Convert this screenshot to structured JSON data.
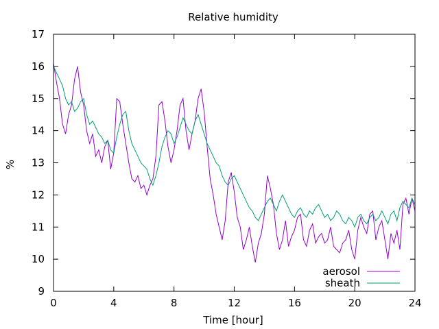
{
  "chart_data": {
    "type": "line",
    "title": "Relative humidity",
    "xlabel": "Time [hour]",
    "ylabel": "%",
    "xlim": [
      0,
      24
    ],
    "ylim": [
      9,
      17
    ],
    "xticks": [
      0,
      4,
      8,
      12,
      16,
      20,
      24
    ],
    "yticks": [
      9,
      10,
      11,
      12,
      13,
      14,
      15,
      16,
      17
    ],
    "grid": false,
    "legend_position": "bottom-right",
    "series": [
      {
        "name": "aerosol",
        "color": "#9400d3",
        "x": [
          0,
          0.2,
          0.4,
          0.6,
          0.8,
          1.0,
          1.2,
          1.4,
          1.6,
          1.8,
          2.0,
          2.2,
          2.4,
          2.6,
          2.8,
          3.0,
          3.2,
          3.4,
          3.6,
          3.8,
          4.0,
          4.2,
          4.4,
          4.6,
          4.8,
          5.0,
          5.2,
          5.4,
          5.6,
          5.8,
          6.0,
          6.2,
          6.4,
          6.6,
          6.8,
          7.0,
          7.2,
          7.4,
          7.6,
          7.8,
          8.0,
          8.2,
          8.4,
          8.6,
          8.8,
          9.0,
          9.2,
          9.4,
          9.6,
          9.8,
          10.0,
          10.2,
          10.4,
          10.6,
          10.8,
          11.0,
          11.2,
          11.4,
          11.6,
          11.8,
          12.0,
          12.2,
          12.4,
          12.6,
          12.8,
          13.0,
          13.2,
          13.4,
          13.6,
          13.8,
          14.0,
          14.2,
          14.4,
          14.6,
          14.8,
          15.0,
          15.2,
          15.4,
          15.6,
          15.8,
          16.0,
          16.2,
          16.4,
          16.6,
          16.8,
          17.0,
          17.2,
          17.4,
          17.6,
          17.8,
          18.0,
          18.2,
          18.4,
          18.6,
          18.8,
          19.0,
          19.2,
          19.4,
          19.6,
          19.8,
          20.0,
          20.2,
          20.4,
          20.6,
          20.8,
          21.0,
          21.2,
          21.4,
          21.6,
          21.8,
          22.0,
          22.2,
          22.4,
          22.6,
          22.8,
          23.0,
          23.2,
          23.4,
          23.6,
          23.8,
          24.0
        ],
        "y": [
          16.1,
          15.5,
          15.0,
          14.2,
          13.9,
          14.5,
          14.8,
          15.6,
          16.0,
          15.2,
          14.8,
          14.0,
          13.6,
          13.9,
          13.2,
          13.4,
          13.0,
          13.5,
          13.7,
          12.8,
          13.3,
          15.0,
          14.9,
          14.2,
          13.6,
          13.0,
          12.5,
          12.4,
          12.6,
          12.2,
          12.3,
          12.0,
          12.3,
          12.5,
          13.2,
          14.8,
          14.9,
          14.3,
          13.5,
          13.0,
          13.4,
          14.0,
          14.8,
          15.0,
          14.0,
          13.4,
          13.9,
          14.3,
          15.0,
          15.3,
          14.6,
          13.5,
          12.5,
          12.0,
          11.4,
          11.0,
          10.6,
          11.2,
          12.4,
          12.7,
          12.1,
          11.3,
          11.0,
          10.3,
          10.6,
          11.0,
          10.4,
          9.9,
          10.5,
          10.8,
          11.4,
          12.6,
          12.2,
          11.7,
          10.8,
          10.3,
          10.6,
          11.2,
          10.4,
          10.7,
          10.9,
          11.3,
          11.4,
          10.6,
          10.4,
          10.9,
          11.1,
          10.5,
          10.7,
          10.8,
          10.5,
          10.6,
          11.0,
          10.4,
          10.3,
          10.2,
          10.5,
          10.6,
          10.9,
          10.3,
          10.0,
          10.9,
          11.3,
          11.0,
          10.8,
          11.4,
          11.5,
          10.6,
          11.0,
          11.2,
          10.6,
          10.0,
          10.8,
          10.5,
          10.9,
          10.3,
          11.7,
          11.9,
          11.4,
          11.9,
          11.5
        ]
      },
      {
        "name": "sheath",
        "color": "#009e73",
        "x": [
          0,
          0.2,
          0.4,
          0.6,
          0.8,
          1.0,
          1.2,
          1.4,
          1.6,
          1.8,
          2.0,
          2.2,
          2.4,
          2.6,
          2.8,
          3.0,
          3.2,
          3.4,
          3.6,
          3.8,
          4.0,
          4.2,
          4.4,
          4.6,
          4.8,
          5.0,
          5.2,
          5.4,
          5.6,
          5.8,
          6.0,
          6.2,
          6.4,
          6.6,
          6.8,
          7.0,
          7.2,
          7.4,
          7.6,
          7.8,
          8.0,
          8.2,
          8.4,
          8.6,
          8.8,
          9.0,
          9.2,
          9.4,
          9.6,
          9.8,
          10.0,
          10.2,
          10.4,
          10.6,
          10.8,
          11.0,
          11.2,
          11.4,
          11.6,
          11.8,
          12.0,
          12.2,
          12.4,
          12.6,
          12.8,
          13.0,
          13.2,
          13.4,
          13.6,
          13.8,
          14.0,
          14.2,
          14.4,
          14.6,
          14.8,
          15.0,
          15.2,
          15.4,
          15.6,
          15.8,
          16.0,
          16.2,
          16.4,
          16.6,
          16.8,
          17.0,
          17.2,
          17.4,
          17.6,
          17.8,
          18.0,
          18.2,
          18.4,
          18.6,
          18.8,
          19.0,
          19.2,
          19.4,
          19.6,
          19.8,
          20.0,
          20.2,
          20.4,
          20.6,
          20.8,
          21.0,
          21.2,
          21.4,
          21.6,
          21.8,
          22.0,
          22.2,
          22.4,
          22.6,
          22.8,
          23.0,
          23.2,
          23.4,
          23.6,
          23.8,
          24.0
        ],
        "y": [
          16.0,
          15.8,
          15.6,
          15.4,
          15.0,
          14.8,
          14.9,
          14.6,
          14.7,
          14.9,
          15.0,
          14.5,
          14.2,
          14.3,
          14.1,
          13.9,
          13.8,
          13.6,
          13.7,
          13.4,
          13.3,
          13.8,
          14.2,
          14.5,
          14.6,
          14.0,
          13.6,
          13.4,
          13.2,
          13.0,
          12.9,
          12.8,
          12.5,
          12.3,
          12.6,
          13.0,
          13.5,
          13.8,
          14.0,
          13.9,
          13.6,
          13.8,
          14.1,
          14.4,
          14.2,
          14.0,
          13.9,
          14.3,
          14.5,
          14.2,
          13.9,
          13.6,
          13.4,
          13.2,
          13.0,
          12.9,
          12.6,
          12.4,
          12.3,
          12.5,
          12.6,
          12.4,
          12.2,
          12.0,
          11.8,
          11.6,
          11.5,
          11.3,
          11.2,
          11.4,
          11.6,
          11.8,
          11.9,
          11.7,
          11.5,
          11.8,
          12.0,
          11.8,
          11.6,
          11.4,
          11.3,
          11.5,
          11.6,
          11.4,
          11.3,
          11.5,
          11.4,
          11.6,
          11.7,
          11.5,
          11.3,
          11.4,
          11.2,
          11.3,
          11.5,
          11.4,
          11.2,
          11.1,
          11.3,
          11.2,
          11.0,
          11.3,
          11.4,
          11.2,
          11.1,
          11.3,
          11.4,
          11.2,
          11.3,
          11.5,
          11.3,
          11.1,
          11.4,
          11.5,
          11.2,
          11.6,
          11.8,
          11.7,
          11.6,
          11.9,
          11.7
        ]
      }
    ]
  }
}
